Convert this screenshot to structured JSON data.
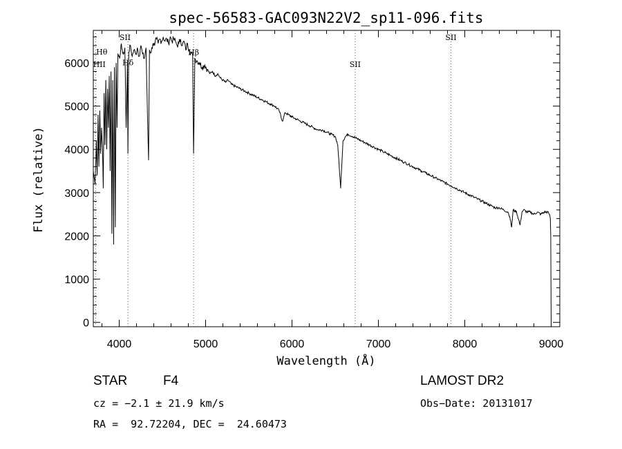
{
  "chart_data": {
    "type": "line",
    "title": "spec-56583-GAC093N22V2_sp11-096.fits",
    "xlabel": "Wavelength (Å)",
    "ylabel": "Flux (relative)",
    "xlim": [
      3700,
      9100
    ],
    "ylim": [
      -100,
      6750
    ],
    "xticks": [
      4000,
      5000,
      6000,
      7000,
      8000,
      9000
    ],
    "yticks": [
      0,
      1000,
      2000,
      3000,
      4000,
      5000,
      6000
    ],
    "series": [
      {
        "name": "flux",
        "x": [
          3700,
          3720,
          3735,
          3745,
          3755,
          3765,
          3775,
          3785,
          3795,
          3805,
          3815,
          3825,
          3835,
          3845,
          3855,
          3865,
          3875,
          3885,
          3895,
          3905,
          3915,
          3925,
          3935,
          3945,
          3955,
          3965,
          3975,
          3985,
          3995,
          4005,
          4020,
          4035,
          4050,
          4065,
          4080,
          4095,
          4101,
          4110,
          4130,
          4150,
          4170,
          4190,
          4210,
          4230,
          4250,
          4270,
          4290,
          4310,
          4330,
          4340,
          4350,
          4370,
          4390,
          4410,
          4430,
          4450,
          4470,
          4490,
          4510,
          4530,
          4550,
          4570,
          4590,
          4610,
          4630,
          4650,
          4670,
          4690,
          4710,
          4730,
          4750,
          4770,
          4790,
          4810,
          4830,
          4850,
          4861,
          4875,
          4900,
          4930,
          4960,
          4990,
          5020,
          5050,
          5080,
          5110,
          5140,
          5170,
          5200,
          5230,
          5260,
          5300,
          5350,
          5400,
          5450,
          5500,
          5550,
          5600,
          5650,
          5700,
          5750,
          5800,
          5850,
          5890,
          5920,
          5960,
          6000,
          6050,
          6100,
          6150,
          6200,
          6250,
          6300,
          6350,
          6400,
          6450,
          6500,
          6530,
          6563,
          6590,
          6620,
          6650,
          6700,
          6750,
          6800,
          6850,
          6900,
          6950,
          7000,
          7050,
          7100,
          7150,
          7200,
          7250,
          7300,
          7350,
          7400,
          7450,
          7500,
          7550,
          7600,
          7650,
          7700,
          7750,
          7800,
          7850,
          7900,
          7950,
          8000,
          8050,
          8100,
          8150,
          8200,
          8250,
          8300,
          8350,
          8400,
          8450,
          8500,
          8520,
          8542,
          8560,
          8600,
          8640,
          8662,
          8680,
          8720,
          8760,
          8800,
          8840,
          8880,
          8920,
          8960,
          8980,
          8990,
          8995,
          9000
        ],
        "values": [
          3500,
          3200,
          4200,
          3400,
          4800,
          3600,
          4900,
          3900,
          4500,
          4100,
          3100,
          5300,
          4100,
          5600,
          4000,
          5400,
          4500,
          5700,
          3500,
          5800,
          2050,
          5600,
          1800,
          5900,
          2200,
          6000,
          4500,
          6200,
          6150,
          6100,
          6400,
          6300,
          6200,
          6350,
          4500,
          6000,
          3900,
          6250,
          6400,
          6150,
          6300,
          6200,
          6350,
          6150,
          6400,
          6200,
          6100,
          6350,
          4500,
          3750,
          6300,
          6250,
          6450,
          6400,
          6550,
          6450,
          6550,
          6500,
          6600,
          6500,
          6550,
          6450,
          6600,
          6500,
          6550,
          6500,
          6400,
          6450,
          6550,
          6400,
          6500,
          6300,
          6450,
          6300,
          6250,
          6150,
          3900,
          6100,
          6050,
          6000,
          5900,
          5950,
          5850,
          5750,
          5800,
          5700,
          5750,
          5650,
          5600,
          5550,
          5600,
          5500,
          5450,
          5400,
          5350,
          5300,
          5250,
          5200,
          5150,
          5100,
          5050,
          5000,
          4900,
          4650,
          4850,
          4800,
          4750,
          4700,
          4650,
          4600,
          4550,
          4500,
          4450,
          4450,
          4400,
          4350,
          4300,
          4100,
          3100,
          4200,
          4300,
          4350,
          4300,
          4250,
          4200,
          4150,
          4100,
          4050,
          4000,
          3950,
          3900,
          3850,
          3800,
          3750,
          3700,
          3650,
          3600,
          3550,
          3500,
          3450,
          3400,
          3350,
          3300,
          3250,
          3200,
          3150,
          3100,
          3050,
          3000,
          2950,
          2900,
          2850,
          2800,
          2750,
          2700,
          2650,
          2650,
          2600,
          2550,
          2450,
          2200,
          2600,
          2550,
          2250,
          2550,
          2600,
          2550,
          2550,
          2500,
          2550,
          2500,
          2550,
          2550,
          2500,
          2400,
          2000,
          0
        ]
      }
    ],
    "line_markers": [
      {
        "label": "Hθ",
        "x": 3798,
        "y": 6190
      },
      {
        "label": "HII",
        "x": 3770,
        "y": 5900
      },
      {
        "label": "SII",
        "x": 4068,
        "y": 6530
      },
      {
        "label": "Hδ",
        "x": 4101,
        "y": 5940
      },
      {
        "label": "Hβ",
        "x": 4861,
        "y": 6180
      },
      {
        "label": "SII",
        "x": 6731,
        "y": 5900
      },
      {
        "label": "SII",
        "x": 7840,
        "y": 6530
      }
    ],
    "marker_lines_x": [
      3727,
      4101,
      4861,
      6731,
      7840
    ]
  },
  "info": {
    "object_type": "STAR",
    "subclass": "F4",
    "cz": "cz = −2.1 ± 21.9 km/s",
    "coords": "RA =  92.72204, DEC =  24.60473",
    "survey": "LAMOST DR2",
    "obs_date": "Obs−Date: 20131017"
  }
}
